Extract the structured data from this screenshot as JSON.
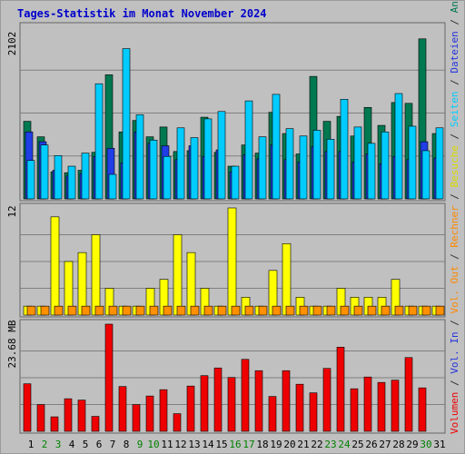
{
  "title": "Tages-Statistik im Monat November 2024",
  "chart_data": [
    {
      "type": "bar",
      "panel": "top",
      "ymax_label": "2102",
      "ymax": 2102,
      "series": [
        {
          "name": "Anfragen",
          "color": "#007850",
          "values": [
            950,
            760,
            330,
            320,
            350,
            570,
            1520,
            820,
            960,
            760,
            880,
            580,
            590,
            1000,
            570,
            400,
            660,
            560,
            1060,
            800,
            550,
            1500,
            950,
            1010,
            770,
            1120,
            900,
            1180,
            1170,
            1960,
            800
          ]
        },
        {
          "name": "Dateien",
          "color": "#1f3ee6",
          "values": [
            820,
            700,
            350,
            280,
            310,
            520,
            620,
            440,
            820,
            680,
            650,
            480,
            650,
            520,
            600,
            330,
            540,
            490,
            660,
            480,
            450,
            640,
            580,
            580,
            450,
            550,
            430,
            520,
            480,
            700,
            500
          ]
        },
        {
          "name": "Seiten",
          "color": "#00ccff",
          "values": [
            470,
            660,
            530,
            400,
            560,
            1410,
            300,
            1840,
            1030,
            720,
            520,
            870,
            750,
            980,
            1070,
            400,
            1200,
            760,
            1280,
            860,
            770,
            840,
            730,
            1220,
            880,
            680,
            820,
            1290,
            890,
            590,
            870
          ]
        }
      ]
    },
    {
      "type": "bar",
      "panel": "middle",
      "ymax_label": "12",
      "ymax": 12,
      "series": [
        {
          "name": "Besuche",
          "color": "#ffff00",
          "values": [
            1,
            1,
            11,
            6,
            7,
            9,
            3,
            1,
            1,
            3,
            4,
            9,
            7,
            3,
            1,
            12,
            2,
            1,
            5,
            8,
            2,
            1,
            1,
            3,
            2,
            2,
            2,
            4,
            1,
            1,
            1
          ]
        },
        {
          "name": "Rechner",
          "color": "#ff9000",
          "values": [
            1,
            1,
            1,
            1,
            1,
            1,
            1,
            1,
            1,
            1,
            1,
            1,
            1,
            1,
            1,
            1,
            1,
            1,
            1,
            1,
            1,
            1,
            1,
            1,
            1,
            1,
            1,
            1,
            1,
            1,
            1
          ]
        }
      ]
    },
    {
      "type": "bar",
      "panel": "bottom",
      "ymax_label": "23.68 MB",
      "ymax": 23.68,
      "series": [
        {
          "name": "Volumen",
          "color": "#ee0000",
          "values": [
            10.5,
            5.9,
            3.2,
            7.2,
            6.9,
            3.3,
            23.68,
            9.9,
            5.9,
            7.8,
            9.2,
            3.9,
            10.0,
            12.3,
            14.0,
            11.9,
            15.9,
            13.4,
            7.7,
            13.4,
            10.4,
            8.5,
            13.9,
            18.6,
            9.4,
            12.0,
            10.8,
            11.3,
            16.3,
            9.6,
            0
          ]
        }
      ]
    }
  ],
  "x_labels": [
    "1",
    "2",
    "3",
    "4",
    "5",
    "6",
    "7",
    "8",
    "9",
    "10",
    "11",
    "12",
    "13",
    "14",
    "15",
    "16",
    "17",
    "18",
    "19",
    "20",
    "21",
    "22",
    "23",
    "24",
    "25",
    "26",
    "27",
    "28",
    "29",
    "30",
    "31"
  ],
  "weekend_days": [
    2,
    3,
    9,
    10,
    16,
    17,
    23,
    24,
    30
  ],
  "right_legend": {
    "parts": [
      {
        "text": "Volumen",
        "color": "#ee0000"
      },
      {
        "text": " / ",
        "color": "#333333"
      },
      {
        "text": "Vol. In",
        "color": "#2233dd"
      },
      {
        "text": " / ",
        "color": "#333333"
      },
      {
        "text": "Vol. Out",
        "color": "#ff8800"
      },
      {
        "text": " / ",
        "color": "#333333"
      },
      {
        "text": "Rechner",
        "color": "#ff8800"
      },
      {
        "text": " / ",
        "color": "#333333"
      },
      {
        "text": "Besuche",
        "color": "#dddd00"
      },
      {
        "text": " / ",
        "color": "#333333"
      },
      {
        "text": "Seiten",
        "color": "#00ccff"
      },
      {
        "text": " / ",
        "color": "#333333"
      },
      {
        "text": "Dateien",
        "color": "#2233dd"
      },
      {
        "text": " / ",
        "color": "#333333"
      },
      {
        "text": "Anfragen",
        "color": "#007850"
      }
    ]
  }
}
